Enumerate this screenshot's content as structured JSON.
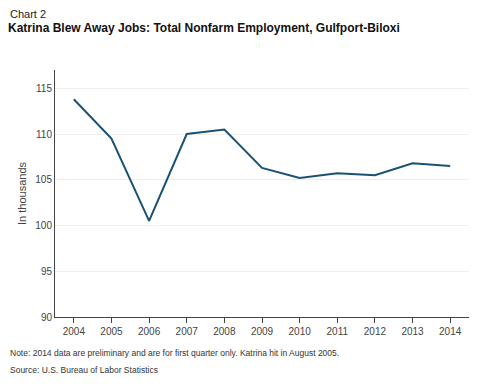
{
  "chart_data": {
    "type": "line",
    "title": "Katrina Blew Away Jobs: Total Nonfarm Employment, Gulfport-Biloxi",
    "subtitle": "Chart 2",
    "ylabel": "In thousands",
    "annotations": [
      "Note: 2014 data are preliminary and are for first quarter only. Katrina hit in August 2005.",
      "Source: U.S. Bureau of Labor Statistics"
    ],
    "x": [
      2004,
      2005,
      2006,
      2007,
      2008,
      2009,
      2010,
      2011,
      2012,
      2013,
      2014
    ],
    "values": [
      113.8,
      109.5,
      100.5,
      110.0,
      110.5,
      106.3,
      105.2,
      105.7,
      105.5,
      106.8,
      106.5
    ],
    "color": "#1a5276",
    "xlim": [
      2003.5,
      2014.5
    ],
    "xticks": [
      2004,
      2005,
      2006,
      2007,
      2008,
      2009,
      2010,
      2011,
      2012,
      2013,
      2014
    ],
    "ylim": [
      90,
      117
    ],
    "yticks": [
      90,
      95,
      100,
      105,
      110,
      115
    ],
    "grid": "y"
  }
}
